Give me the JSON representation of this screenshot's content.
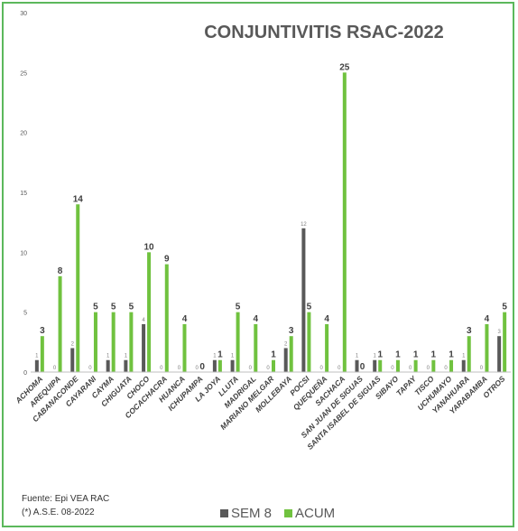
{
  "footer": {
    "source": "Fuente: Epi VEA RAC",
    "note": "(*) A.S.E. 08-2022"
  },
  "chart_data": {
    "type": "bar",
    "title": "CONJUNTIVITIS RSAC-2022",
    "ylim": [
      0,
      30
    ],
    "yticks": [
      0,
      5,
      10,
      15,
      20,
      25,
      30
    ],
    "legend_position": "bottom",
    "grid": false,
    "categories": [
      "ACHOMA",
      "AREQUIPA",
      "CABANACONDE",
      "CAYARANI",
      "CAYMA",
      "CHIGUATA",
      "CHOCO",
      "COCACHACRA",
      "HUANCA",
      "ICHUPAMPA",
      "LA JOYA",
      "LLUTA",
      "MADRIGAL",
      "MARIANO MELGAR",
      "MOLLEBAYA",
      "POCSI",
      "QUEQUEÑA",
      "SACHACA",
      "SAN JUAN DE SIGUAS",
      "SANTA ISABEL DE SIGUAS",
      "SIBAYO",
      "TAPAY",
      "TISCO",
      "UCHUMAYO",
      "YANAHUARA",
      "YARABAMBA",
      "OTROS"
    ],
    "series": [
      {
        "name": "SEM 8",
        "color": "#595959",
        "values": [
          1,
          0,
          2,
          0,
          1,
          1,
          4,
          0,
          0,
          0,
          1,
          1,
          0,
          0,
          2,
          12,
          0,
          0,
          1,
          1,
          0,
          0,
          0,
          0,
          1,
          0,
          3
        ],
        "labels": [
          "1",
          "0",
          "2",
          "0",
          "1",
          "1",
          "4",
          "0",
          "0",
          "0",
          "1",
          "1",
          "0",
          "0",
          "2",
          "12",
          "0",
          "0",
          "1",
          "1",
          "0",
          "0",
          "0",
          "0",
          "1",
          "0",
          "3"
        ]
      },
      {
        "name": "ACUM",
        "color": "#70c23f",
        "values": [
          3,
          8,
          14,
          5,
          5,
          5,
          10,
          9,
          4,
          0,
          1,
          5,
          4,
          1,
          3,
          5,
          4,
          25,
          0,
          1,
          1,
          1,
          1,
          1,
          3,
          4,
          5
        ],
        "labels": [
          "3",
          "8",
          "14",
          "5",
          "5",
          "5",
          "10",
          "9",
          "4",
          "0",
          "1",
          "5",
          "4",
          "1",
          "3",
          "5",
          "4",
          "25",
          "0",
          "1",
          "1",
          "1",
          "1",
          "1",
          "3",
          "4",
          "5"
        ]
      }
    ]
  }
}
